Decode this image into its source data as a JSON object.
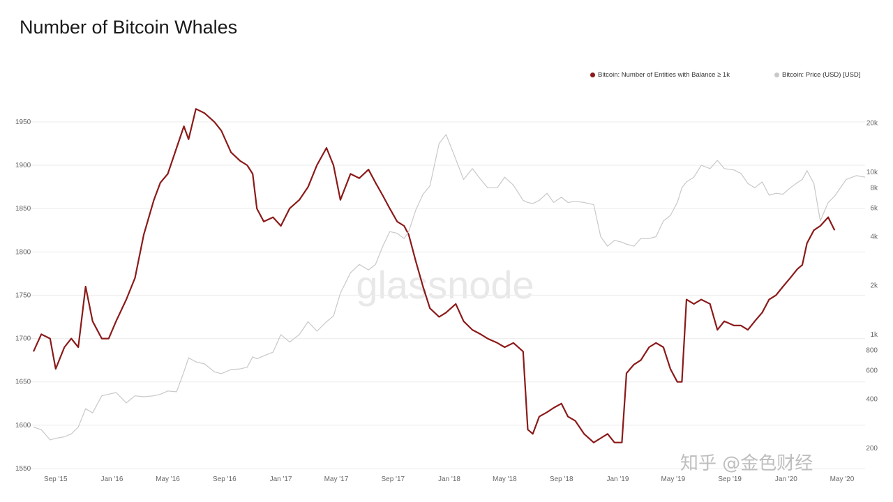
{
  "chart_data": {
    "type": "line",
    "title": "Number of Bitcoin Whales",
    "watermark": "glassnode",
    "credit": "知乎 @金色财经",
    "x_ticks": [
      "Sep '15",
      "Jan '16",
      "May '16",
      "Sep '16",
      "Jan '17",
      "May '17",
      "Sep '17",
      "Jan '18",
      "May '18",
      "Sep '18",
      "Jan '19",
      "May '19",
      "Sep '19",
      "Jan '20",
      "May '20"
    ],
    "y_left": {
      "ticks": [
        1550,
        1600,
        1650,
        1700,
        1750,
        1800,
        1850,
        1900,
        1950
      ],
      "range": [
        1550,
        1970
      ]
    },
    "y_right": {
      "scale": "log",
      "ticks": [
        "200",
        "400",
        "600",
        "800",
        "1k",
        "2k",
        "4k",
        "6k",
        "8k",
        "10k",
        "20k"
      ],
      "tick_values": [
        200,
        400,
        600,
        800,
        1000,
        2000,
        4000,
        6000,
        8000,
        10000,
        20000
      ]
    },
    "grid": true,
    "legend_position": "top-right",
    "series": [
      {
        "name": "Bitcoin: Number of Entities with Balance ≥ 1k",
        "axis": "left",
        "color": "#8b1a1a",
        "points": [
          [
            "2015-07-15",
            1685
          ],
          [
            "2015-08-01",
            1705
          ],
          [
            "2015-08-20",
            1700
          ],
          [
            "2015-09-01",
            1665
          ],
          [
            "2015-09-20",
            1690
          ],
          [
            "2015-10-05",
            1700
          ],
          [
            "2015-10-20",
            1690
          ],
          [
            "2015-11-05",
            1760
          ],
          [
            "2015-11-20",
            1720
          ],
          [
            "2015-12-10",
            1700
          ],
          [
            "2015-12-25",
            1700
          ],
          [
            "2016-01-10",
            1720
          ],
          [
            "2016-02-01",
            1745
          ],
          [
            "2016-02-20",
            1770
          ],
          [
            "2016-03-10",
            1820
          ],
          [
            "2016-04-01",
            1860
          ],
          [
            "2016-04-15",
            1880
          ],
          [
            "2016-05-01",
            1890
          ],
          [
            "2016-05-20",
            1920
          ],
          [
            "2016-06-05",
            1945
          ],
          [
            "2016-06-15",
            1930
          ],
          [
            "2016-07-01",
            1965
          ],
          [
            "2016-07-20",
            1960
          ],
          [
            "2016-08-10",
            1950
          ],
          [
            "2016-08-25",
            1940
          ],
          [
            "2016-09-15",
            1915
          ],
          [
            "2016-10-05",
            1905
          ],
          [
            "2016-10-20",
            1900
          ],
          [
            "2016-11-01",
            1890
          ],
          [
            "2016-11-10",
            1850
          ],
          [
            "2016-11-25",
            1835
          ],
          [
            "2016-12-15",
            1840
          ],
          [
            "2017-01-01",
            1830
          ],
          [
            "2017-01-20",
            1850
          ],
          [
            "2017-02-10",
            1860
          ],
          [
            "2017-03-01",
            1875
          ],
          [
            "2017-03-20",
            1900
          ],
          [
            "2017-04-10",
            1920
          ],
          [
            "2017-04-25",
            1900
          ],
          [
            "2017-05-10",
            1860
          ],
          [
            "2017-06-01",
            1890
          ],
          [
            "2017-06-20",
            1885
          ],
          [
            "2017-07-10",
            1895
          ],
          [
            "2017-07-25",
            1880
          ],
          [
            "2017-08-10",
            1865
          ],
          [
            "2017-08-25",
            1850
          ],
          [
            "2017-09-10",
            1835
          ],
          [
            "2017-09-25",
            1830
          ],
          [
            "2017-10-05",
            1820
          ],
          [
            "2017-10-20",
            1790
          ],
          [
            "2017-11-05",
            1760
          ],
          [
            "2017-11-20",
            1735
          ],
          [
            "2017-12-10",
            1725
          ],
          [
            "2017-12-25",
            1730
          ],
          [
            "2018-01-15",
            1740
          ],
          [
            "2018-02-01",
            1720
          ],
          [
            "2018-02-20",
            1710
          ],
          [
            "2018-03-10",
            1705
          ],
          [
            "2018-03-25",
            1700
          ],
          [
            "2018-04-15",
            1695
          ],
          [
            "2018-05-01",
            1690
          ],
          [
            "2018-05-20",
            1695
          ],
          [
            "2018-06-10",
            1685
          ],
          [
            "2018-06-20",
            1595
          ],
          [
            "2018-07-01",
            1590
          ],
          [
            "2018-07-15",
            1610
          ],
          [
            "2018-08-01",
            1615
          ],
          [
            "2018-08-15",
            1620
          ],
          [
            "2018-09-01",
            1625
          ],
          [
            "2018-09-15",
            1610
          ],
          [
            "2018-10-01",
            1605
          ],
          [
            "2018-10-20",
            1590
          ],
          [
            "2018-11-10",
            1580
          ],
          [
            "2018-11-25",
            1585
          ],
          [
            "2018-12-10",
            1590
          ],
          [
            "2018-12-25",
            1580
          ],
          [
            "2019-01-10",
            1580
          ],
          [
            "2019-01-20",
            1660
          ],
          [
            "2019-02-05",
            1670
          ],
          [
            "2019-02-20",
            1675
          ],
          [
            "2019-03-10",
            1690
          ],
          [
            "2019-03-25",
            1695
          ],
          [
            "2019-04-10",
            1690
          ],
          [
            "2019-04-25",
            1665
          ],
          [
            "2019-05-10",
            1650
          ],
          [
            "2019-05-20",
            1650
          ],
          [
            "2019-05-30",
            1745
          ],
          [
            "2019-06-15",
            1740
          ],
          [
            "2019-07-01",
            1745
          ],
          [
            "2019-07-20",
            1740
          ],
          [
            "2019-08-05",
            1710
          ],
          [
            "2019-08-20",
            1720
          ],
          [
            "2019-09-10",
            1715
          ],
          [
            "2019-09-25",
            1715
          ],
          [
            "2019-10-10",
            1710
          ],
          [
            "2019-10-25",
            1720
          ],
          [
            "2019-11-10",
            1730
          ],
          [
            "2019-11-25",
            1745
          ],
          [
            "2019-12-10",
            1750
          ],
          [
            "2019-12-25",
            1760
          ],
          [
            "2020-01-10",
            1770
          ],
          [
            "2020-01-25",
            1780
          ],
          [
            "2020-02-05",
            1785
          ],
          [
            "2020-02-15",
            1810
          ],
          [
            "2020-03-01",
            1825
          ],
          [
            "2020-03-15",
            1830
          ],
          [
            "2020-04-01",
            1840
          ],
          [
            "2020-04-15",
            1825
          ]
        ]
      },
      {
        "name": "Bitcoin: Price (USD) [USD]",
        "axis": "right",
        "color": "#c8c8c8",
        "points": [
          [
            "2015-07-15",
            270
          ],
          [
            "2015-08-01",
            260
          ],
          [
            "2015-08-20",
            225
          ],
          [
            "2015-09-01",
            230
          ],
          [
            "2015-09-20",
            235
          ],
          [
            "2015-10-05",
            245
          ],
          [
            "2015-10-20",
            270
          ],
          [
            "2015-11-05",
            350
          ],
          [
            "2015-11-20",
            330
          ],
          [
            "2015-12-10",
            420
          ],
          [
            "2015-12-25",
            430
          ],
          [
            "2016-01-10",
            440
          ],
          [
            "2016-02-01",
            380
          ],
          [
            "2016-02-20",
            420
          ],
          [
            "2016-03-10",
            415
          ],
          [
            "2016-04-01",
            420
          ],
          [
            "2016-04-15",
            430
          ],
          [
            "2016-05-01",
            450
          ],
          [
            "2016-05-20",
            445
          ],
          [
            "2016-06-05",
            590
          ],
          [
            "2016-06-15",
            720
          ],
          [
            "2016-07-01",
            680
          ],
          [
            "2016-07-20",
            660
          ],
          [
            "2016-08-10",
            590
          ],
          [
            "2016-08-25",
            575
          ],
          [
            "2016-09-15",
            610
          ],
          [
            "2016-10-05",
            615
          ],
          [
            "2016-10-20",
            630
          ],
          [
            "2016-11-01",
            730
          ],
          [
            "2016-11-10",
            710
          ],
          [
            "2016-11-25",
            740
          ],
          [
            "2016-12-15",
            780
          ],
          [
            "2017-01-01",
            1000
          ],
          [
            "2017-01-20",
            900
          ],
          [
            "2017-02-10",
            1000
          ],
          [
            "2017-03-01",
            1200
          ],
          [
            "2017-03-20",
            1050
          ],
          [
            "2017-04-10",
            1200
          ],
          [
            "2017-04-25",
            1300
          ],
          [
            "2017-05-10",
            1800
          ],
          [
            "2017-06-01",
            2400
          ],
          [
            "2017-06-20",
            2700
          ],
          [
            "2017-07-10",
            2500
          ],
          [
            "2017-07-25",
            2700
          ],
          [
            "2017-08-10",
            3500
          ],
          [
            "2017-08-25",
            4300
          ],
          [
            "2017-09-10",
            4200
          ],
          [
            "2017-09-25",
            3900
          ],
          [
            "2017-10-05",
            4300
          ],
          [
            "2017-10-20",
            5800
          ],
          [
            "2017-11-05",
            7300
          ],
          [
            "2017-11-20",
            8200
          ],
          [
            "2017-12-10",
            15000
          ],
          [
            "2017-12-25",
            17000
          ],
          [
            "2018-01-15",
            12000
          ],
          [
            "2018-02-01",
            9000
          ],
          [
            "2018-02-20",
            10500
          ],
          [
            "2018-03-10",
            9000
          ],
          [
            "2018-03-25",
            8000
          ],
          [
            "2018-04-15",
            8000
          ],
          [
            "2018-05-01",
            9300
          ],
          [
            "2018-05-20",
            8300
          ],
          [
            "2018-06-10",
            6700
          ],
          [
            "2018-06-20",
            6500
          ],
          [
            "2018-07-01",
            6400
          ],
          [
            "2018-07-15",
            6700
          ],
          [
            "2018-08-01",
            7400
          ],
          [
            "2018-08-15",
            6500
          ],
          [
            "2018-09-01",
            7000
          ],
          [
            "2018-09-15",
            6500
          ],
          [
            "2018-10-01",
            6600
          ],
          [
            "2018-10-20",
            6500
          ],
          [
            "2018-11-10",
            6300
          ],
          [
            "2018-11-25",
            4000
          ],
          [
            "2018-12-10",
            3500
          ],
          [
            "2018-12-25",
            3800
          ],
          [
            "2019-01-10",
            3700
          ],
          [
            "2019-01-20",
            3600
          ],
          [
            "2019-02-05",
            3500
          ],
          [
            "2019-02-20",
            3900
          ],
          [
            "2019-03-10",
            3900
          ],
          [
            "2019-03-25",
            4000
          ],
          [
            "2019-04-10",
            5000
          ],
          [
            "2019-04-25",
            5400
          ],
          [
            "2019-05-10",
            6500
          ],
          [
            "2019-05-20",
            8000
          ],
          [
            "2019-05-30",
            8700
          ],
          [
            "2019-06-15",
            9300
          ],
          [
            "2019-07-01",
            11000
          ],
          [
            "2019-07-20",
            10500
          ],
          [
            "2019-08-05",
            11800
          ],
          [
            "2019-08-20",
            10500
          ],
          [
            "2019-09-10",
            10300
          ],
          [
            "2019-09-25",
            9800
          ],
          [
            "2019-10-10",
            8500
          ],
          [
            "2019-10-25",
            8000
          ],
          [
            "2019-11-10",
            8700
          ],
          [
            "2019-11-25",
            7200
          ],
          [
            "2019-12-10",
            7400
          ],
          [
            "2019-12-25",
            7300
          ],
          [
            "2020-01-10",
            8000
          ],
          [
            "2020-01-25",
            8600
          ],
          [
            "2020-02-05",
            9000
          ],
          [
            "2020-02-15",
            10200
          ],
          [
            "2020-03-01",
            8500
          ],
          [
            "2020-03-15",
            5000
          ],
          [
            "2020-04-01",
            6500
          ],
          [
            "2020-04-15",
            7100
          ],
          [
            "2020-05-10",
            9000
          ],
          [
            "2020-06-01",
            9500
          ],
          [
            "2020-06-20",
            9300
          ]
        ]
      }
    ]
  }
}
